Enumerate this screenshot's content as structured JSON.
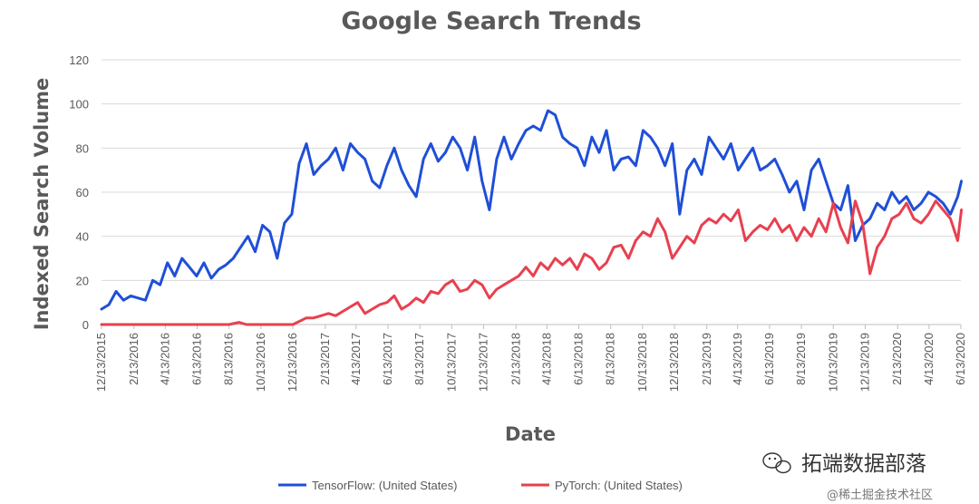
{
  "chart_data": {
    "type": "line",
    "title": "Google Search Trends",
    "xlabel": "Date",
    "ylabel": "Indexed Search Volume",
    "ylim": [
      0,
      120
    ],
    "yticks": [
      0,
      20,
      40,
      60,
      80,
      100,
      120
    ],
    "grid": true,
    "legend_position": "bottom",
    "x_tick_labels": [
      "12/13/2015",
      "2/13/2016",
      "4/13/2016",
      "6/13/2016",
      "8/13/2016",
      "10/13/2016",
      "12/13/2016",
      "2/13/2017",
      "4/13/2017",
      "6/13/2017",
      "8/13/2017",
      "10/13/2017",
      "12/13/2017",
      "2/13/2018",
      "4/13/2018",
      "6/13/2018",
      "8/13/2018",
      "10/13/2018",
      "12/13/2018",
      "2/13/2019",
      "4/13/2019",
      "6/13/2019",
      "8/13/2019",
      "10/13/2019",
      "12/13/2019",
      "2/13/2020",
      "4/13/2020",
      "6/13/2020"
    ],
    "x_dates": [
      "2015-12-13",
      "2016-02-13",
      "2016-04-13",
      "2016-06-13",
      "2016-08-13",
      "2016-10-13",
      "2016-12-13",
      "2017-02-13",
      "2017-04-13",
      "2017-06-13",
      "2017-08-13",
      "2017-10-13",
      "2017-12-13",
      "2018-02-13",
      "2018-04-13",
      "2018-06-13",
      "2018-08-13",
      "2018-10-13",
      "2018-12-13",
      "2019-02-13",
      "2019-04-13",
      "2019-06-13",
      "2019-08-13",
      "2019-10-13",
      "2019-12-13",
      "2020-02-13",
      "2020-04-13",
      "2020-06-13"
    ],
    "series": [
      {
        "name": "TensorFlow: (United States)",
        "color": "#1f4fd8",
        "x": [
          "2015-12-13",
          "2015-12-27",
          "2016-01-10",
          "2016-01-24",
          "2016-02-07",
          "2016-02-21",
          "2016-03-06",
          "2016-03-20",
          "2016-04-03",
          "2016-04-17",
          "2016-05-01",
          "2016-05-15",
          "2016-05-29",
          "2016-06-12",
          "2016-06-26",
          "2016-07-10",
          "2016-07-24",
          "2016-08-07",
          "2016-08-21",
          "2016-09-04",
          "2016-09-18",
          "2016-10-02",
          "2016-10-16",
          "2016-10-30",
          "2016-11-13",
          "2016-11-27",
          "2016-12-11",
          "2016-12-25",
          "2017-01-08",
          "2017-01-22",
          "2017-02-05",
          "2017-02-19",
          "2017-03-05",
          "2017-03-19",
          "2017-04-02",
          "2017-04-16",
          "2017-04-30",
          "2017-05-14",
          "2017-05-28",
          "2017-06-11",
          "2017-06-25",
          "2017-07-09",
          "2017-07-23",
          "2017-08-06",
          "2017-08-20",
          "2017-09-03",
          "2017-09-17",
          "2017-10-01",
          "2017-10-15",
          "2017-10-29",
          "2017-11-12",
          "2017-11-26",
          "2017-12-10",
          "2017-12-24",
          "2018-01-07",
          "2018-01-21",
          "2018-02-04",
          "2018-02-18",
          "2018-03-04",
          "2018-03-18",
          "2018-04-01",
          "2018-04-15",
          "2018-04-29",
          "2018-05-13",
          "2018-05-27",
          "2018-06-10",
          "2018-06-24",
          "2018-07-08",
          "2018-07-22",
          "2018-08-05",
          "2018-08-19",
          "2018-09-02",
          "2018-09-16",
          "2018-09-30",
          "2018-10-14",
          "2018-10-28",
          "2018-11-11",
          "2018-11-25",
          "2018-12-09",
          "2018-12-23",
          "2019-01-06",
          "2019-01-20",
          "2019-02-03",
          "2019-02-17",
          "2019-03-03",
          "2019-03-17",
          "2019-03-31",
          "2019-04-14",
          "2019-04-28",
          "2019-05-12",
          "2019-05-26",
          "2019-06-09",
          "2019-06-23",
          "2019-07-07",
          "2019-07-21",
          "2019-08-04",
          "2019-08-18",
          "2019-09-01",
          "2019-09-15",
          "2019-09-29",
          "2019-10-13",
          "2019-10-27",
          "2019-11-10",
          "2019-11-24",
          "2019-12-08",
          "2019-12-22",
          "2020-01-05",
          "2020-01-19",
          "2020-02-02",
          "2020-02-16",
          "2020-03-01",
          "2020-03-15",
          "2020-03-29",
          "2020-04-12",
          "2020-04-26",
          "2020-05-10",
          "2020-05-24",
          "2020-06-07",
          "2020-06-14"
        ],
        "values": [
          7,
          9,
          15,
          11,
          13,
          12,
          11,
          20,
          18,
          28,
          22,
          30,
          26,
          22,
          28,
          21,
          25,
          27,
          30,
          35,
          40,
          33,
          45,
          42,
          30,
          46,
          50,
          73,
          82,
          68,
          72,
          75,
          80,
          70,
          82,
          78,
          75,
          65,
          62,
          72,
          80,
          70,
          63,
          58,
          75,
          82,
          74,
          78,
          85,
          80,
          70,
          85,
          65,
          52,
          75,
          85,
          75,
          82,
          88,
          90,
          88,
          97,
          95,
          85,
          82,
          80,
          72,
          85,
          78,
          88,
          70,
          75,
          76,
          72,
          88,
          85,
          80,
          72,
          82,
          50,
          70,
          75,
          68,
          85,
          80,
          75,
          82,
          70,
          75,
          80,
          70,
          72,
          75,
          68,
          60,
          65,
          52,
          70,
          75,
          65,
          55,
          52,
          63,
          38,
          45,
          48,
          55,
          52,
          60,
          55,
          58,
          52,
          55,
          60,
          58,
          55,
          50,
          58,
          65
        ],
        "line_break_marker": null
      },
      {
        "name": "PyTorch: (United States)",
        "color": "#e8404f",
        "x": [
          "2015-12-13",
          "2016-02-13",
          "2016-04-13",
          "2016-06-13",
          "2016-08-13",
          "2016-09-01",
          "2016-09-15",
          "2016-10-13",
          "2016-12-13",
          "2017-01-08",
          "2017-01-22",
          "2017-02-05",
          "2017-02-19",
          "2017-03-05",
          "2017-03-19",
          "2017-04-02",
          "2017-04-16",
          "2017-04-30",
          "2017-05-14",
          "2017-05-28",
          "2017-06-11",
          "2017-06-25",
          "2017-07-09",
          "2017-07-23",
          "2017-08-06",
          "2017-08-20",
          "2017-09-03",
          "2017-09-17",
          "2017-10-01",
          "2017-10-15",
          "2017-10-29",
          "2017-11-12",
          "2017-11-26",
          "2017-12-10",
          "2017-12-24",
          "2018-01-07",
          "2018-01-21",
          "2018-02-04",
          "2018-02-18",
          "2018-03-04",
          "2018-03-18",
          "2018-04-01",
          "2018-04-15",
          "2018-04-29",
          "2018-05-13",
          "2018-05-27",
          "2018-06-10",
          "2018-06-24",
          "2018-07-08",
          "2018-07-22",
          "2018-08-05",
          "2018-08-19",
          "2018-09-02",
          "2018-09-16",
          "2018-09-30",
          "2018-10-14",
          "2018-10-28",
          "2018-11-11",
          "2018-11-25",
          "2018-12-09",
          "2018-12-23",
          "2019-01-06",
          "2019-01-20",
          "2019-02-03",
          "2019-02-17",
          "2019-03-03",
          "2019-03-17",
          "2019-03-31",
          "2019-04-14",
          "2019-04-28",
          "2019-05-12",
          "2019-05-26",
          "2019-06-09",
          "2019-06-23",
          "2019-07-07",
          "2019-07-21",
          "2019-08-04",
          "2019-08-18",
          "2019-09-01",
          "2019-09-15",
          "2019-09-29",
          "2019-10-13",
          "2019-10-27",
          "2019-11-10",
          "2019-11-24",
          "2019-12-08",
          "2019-12-22",
          "2020-01-05",
          "2020-01-19",
          "2020-02-02",
          "2020-02-16",
          "2020-03-01",
          "2020-03-15",
          "2020-03-29",
          "2020-04-12",
          "2020-04-26",
          "2020-05-10",
          "2020-05-24",
          "2020-06-07",
          "2020-06-14"
        ],
        "values": [
          0,
          0,
          0,
          0,
          0,
          1,
          0,
          0,
          0,
          3,
          3,
          4,
          5,
          4,
          6,
          8,
          10,
          5,
          7,
          9,
          10,
          13,
          7,
          9,
          12,
          10,
          15,
          14,
          18,
          20,
          15,
          16,
          20,
          18,
          12,
          16,
          18,
          20,
          22,
          26,
          22,
          28,
          25,
          30,
          27,
          30,
          25,
          32,
          30,
          25,
          28,
          35,
          36,
          30,
          38,
          42,
          40,
          48,
          42,
          30,
          35,
          40,
          37,
          45,
          48,
          46,
          50,
          47,
          52,
          38,
          42,
          45,
          43,
          48,
          42,
          45,
          38,
          44,
          40,
          48,
          42,
          55,
          44,
          37,
          56,
          46,
          23,
          35,
          40,
          48,
          50,
          55,
          48,
          46,
          50,
          56,
          52,
          48,
          38,
          52
        ]
      }
    ]
  },
  "watermark": {
    "line1": "拓端数据部落",
    "line2": "@稀土掘金技术社区"
  }
}
